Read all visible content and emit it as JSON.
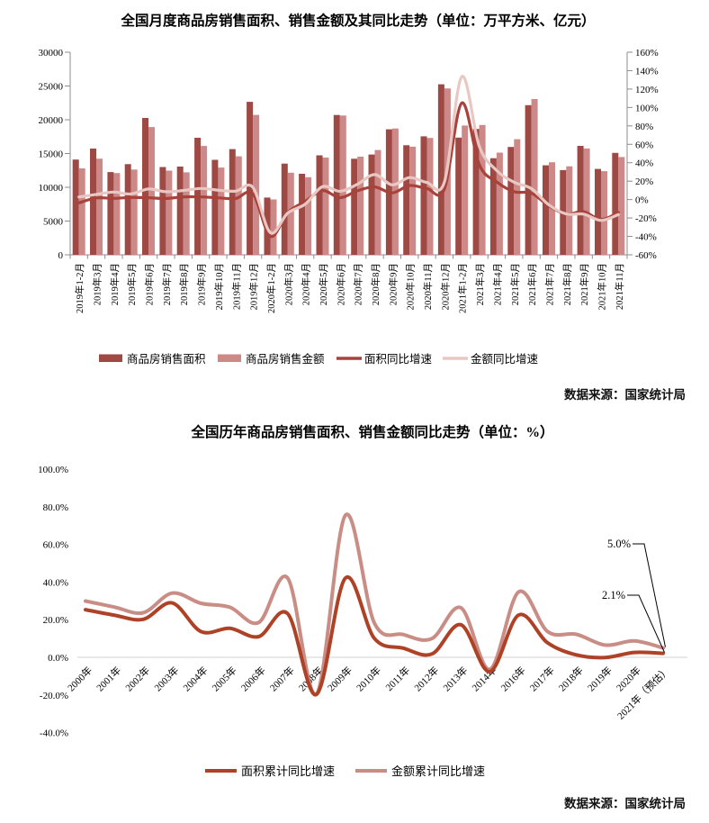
{
  "chart_data": [
    {
      "type": "bar",
      "title": "全国月度商品房销售面积、销售金额及其同比走势（单位：万平方米、亿元）",
      "source": "数据来源：国家统计局",
      "categories": [
        "2019年1-2月",
        "2019年3月",
        "2019年4月",
        "2019年5月",
        "2019年6月",
        "2019年7月",
        "2019年8月",
        "2019年9月",
        "2019年10月",
        "2019年11月",
        "2019年12月",
        "2020年1-2月",
        "2020年3月",
        "2020年4月",
        "2020年5月",
        "2020年6月",
        "2020年7月",
        "2020年8月",
        "2020年9月",
        "2020年10月",
        "2020年11月",
        "2020年12月",
        "2021年1-2月",
        "2021年3月",
        "2021年4月",
        "2021年5月",
        "2021年6月",
        "2021年7月",
        "2021年8月",
        "2021年9月",
        "2021年10月",
        "2021年11月"
      ],
      "bar_series": [
        {
          "name": "商品房销售面积",
          "color": "#9e4944",
          "axis": "left",
          "values": [
            14102,
            15727,
            12256,
            13433,
            20268,
            12997,
            13066,
            17330,
            14072,
            15654,
            22653,
            8475,
            13503,
            11995,
            14730,
            20701,
            14227,
            14855,
            18587,
            16221,
            17540,
            25252,
            17363,
            18644,
            14311,
            15976,
            22156,
            13253,
            12540,
            16139,
            12716,
            15091
          ]
        },
        {
          "name": "商品房销售金额",
          "color": "#cd8987",
          "axis": "left",
          "values": [
            12803,
            14236,
            12102,
            12632,
            18925,
            12464,
            12211,
            16118,
            12926,
            14589,
            20719,
            8203,
            12162,
            11498,
            14406,
            20626,
            14527,
            15521,
            18704,
            16018,
            17304,
            24644,
            19151,
            19227,
            15139,
            17123,
            23073,
            13701,
            13102,
            15748,
            12390,
            14482
          ]
        }
      ],
      "line_series": [
        {
          "name": "面积同比增速",
          "color": "#a8423b",
          "axis": "right",
          "values": [
            -3.6,
            1.8,
            1.3,
            2.3,
            2.0,
            1.2,
            2.9,
            2.9,
            1.9,
            1.1,
            6.2,
            -39.9,
            -14.1,
            -2.1,
            9.7,
            2.1,
            9.5,
            13.7,
            7.3,
            15.3,
            12.0,
            11.5,
            104.9,
            38.1,
            19.3,
            8.5,
            7.0,
            -6.8,
            -15.6,
            -13.2,
            -21.6,
            -14.0
          ]
        },
        {
          "name": "金额同比增速",
          "color": "#e9c8c4",
          "axis": "right",
          "values": [
            2.8,
            5.6,
            8.2,
            6.1,
            11.5,
            8.5,
            9.8,
            12.1,
            10.2,
            9.1,
            13.2,
            -35.9,
            -14.6,
            -5.0,
            14.0,
            9.0,
            16.6,
            27.1,
            16.0,
            23.9,
            18.6,
            18.9,
            133.4,
            58.1,
            31.7,
            18.9,
            11.9,
            -5.7,
            -15.6,
            -15.8,
            -22.6,
            -16.3
          ]
        }
      ],
      "left_axis": {
        "min": 0,
        "max": 30000,
        "step": 5000,
        "labels": [
          "30000",
          "25000",
          "20000",
          "15000",
          "10000",
          "5000",
          "0"
        ]
      },
      "right_axis": {
        "min": -60,
        "max": 160,
        "step": 20,
        "labels": [
          "160%",
          "140%",
          "120%",
          "100%",
          "80%",
          "60%",
          "40%",
          "20%",
          "0%",
          "-20%",
          "-40%",
          "-60%"
        ]
      },
      "legend_position": "bottom",
      "grid": false
    },
    {
      "type": "line",
      "title": "全国历年商品房销售面积、销售金额同比走势（单位：%）",
      "source": "数据来源：国家统计局",
      "categories": [
        "2000年",
        "2001年",
        "2002年",
        "2003年",
        "2004年",
        "2005年",
        "2006年",
        "2007年",
        "2008年",
        "2009年",
        "2010年",
        "2011年",
        "2012年",
        "2013年",
        "2014年",
        "2016年",
        "2017年",
        "2018年",
        "2019年",
        "2020年",
        "2021年（预估）"
      ],
      "series": [
        {
          "name": "面积累计同比增速",
          "color": "#ae4227",
          "values": [
            25.3,
            22.4,
            20.2,
            28.9,
            13.7,
            15.4,
            11.0,
            23.2,
            -19.7,
            42.1,
            10.1,
            4.9,
            1.8,
            17.3,
            -7.6,
            22.5,
            7.7,
            1.3,
            -0.1,
            2.6,
            2.1
          ]
        },
        {
          "name": "金额累计同比增速",
          "color": "#c98d85",
          "values": [
            29.9,
            26.7,
            23.7,
            34.1,
            28.7,
            26.6,
            18.5,
            42.1,
            -19.5,
            75.5,
            18.3,
            12.1,
            10.0,
            26.3,
            -6.3,
            34.8,
            13.7,
            12.2,
            6.5,
            8.7,
            5.0
          ]
        }
      ],
      "y_axis": {
        "min": -40,
        "max": 100,
        "step": 20,
        "labels": [
          "100.0%",
          "80.0%",
          "60.0%",
          "40.0%",
          "20.0%",
          "0.0%",
          "-20.0%",
          "-40.0%"
        ]
      },
      "annotations": [
        {
          "label": "5.0%",
          "value": 5.0,
          "series": "金额累计同比增速"
        },
        {
          "label": "2.1%",
          "value": 2.1,
          "series": "面积累计同比增速"
        }
      ],
      "legend_position": "bottom",
      "grid": "zero-line-only"
    }
  ]
}
